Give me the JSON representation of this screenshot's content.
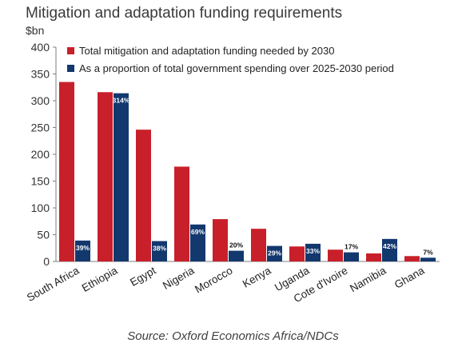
{
  "title": "Mitigation and adaptation funding requirements",
  "unit": "$bn",
  "source": "Source: Oxford Economics Africa/NDCs",
  "colors": {
    "red": "#c8202a",
    "navy": "#12386e",
    "axis": "#7f7f7f"
  },
  "chart_data": {
    "type": "bar",
    "categories": [
      "South Africa",
      "Ethiopia",
      "Egypt",
      "Nigeria",
      "Morocco",
      "Kenya",
      "Uganda",
      "Cote d'Ivoire",
      "Namibia",
      "Ghana"
    ],
    "ylim": [
      0,
      400
    ],
    "yticks": [
      0,
      50,
      100,
      150,
      200,
      250,
      300,
      350,
      400
    ],
    "legend_position": "top",
    "series": [
      {
        "name": "Total mitigation and adaptation funding needed by 2030",
        "values": [
          335,
          316,
          246,
          177,
          79,
          61,
          28,
          22,
          15,
          10
        ]
      },
      {
        "name": "As a proportion of total government spending over 2025-2030 period",
        "values": [
          39,
          314,
          38,
          69,
          20,
          29,
          33,
          17,
          42,
          7
        ],
        "labels": [
          "39%",
          "314%",
          "38%",
          "69%",
          "20%",
          "29%",
          "33%",
          "17%",
          "42%",
          "7%"
        ]
      }
    ]
  }
}
